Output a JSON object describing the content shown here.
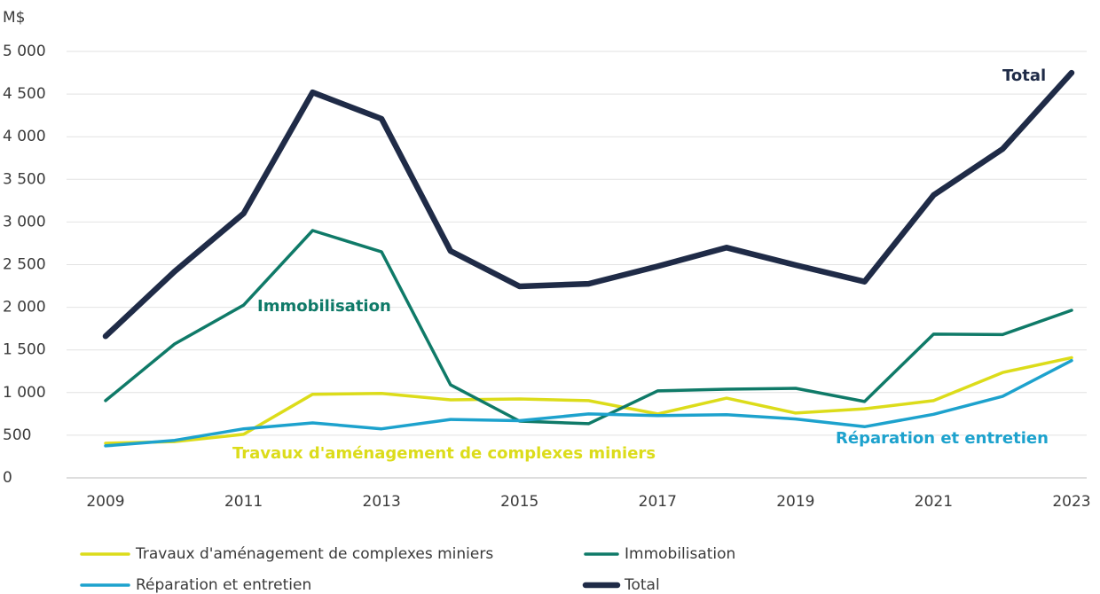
{
  "chart_data": {
    "type": "line",
    "y_unit": "M$",
    "x": [
      2009,
      2010,
      2011,
      2012,
      2013,
      2014,
      2015,
      2016,
      2017,
      2018,
      2019,
      2020,
      2021,
      2022,
      2023
    ],
    "xlim": [
      2009,
      2023
    ],
    "xticks": [
      2009,
      2011,
      2013,
      2015,
      2017,
      2019,
      2021,
      2023
    ],
    "ylim": [
      0,
      5000
    ],
    "yticks": [
      0,
      500,
      {
        "value": 1000,
        "label": "1 000"
      },
      {
        "value": 1500,
        "label": "1 500"
      },
      {
        "value": 2000,
        "label": "2 000"
      },
      {
        "value": 2500,
        "label": "2 500"
      },
      {
        "value": 3000,
        "label": "3 000"
      },
      {
        "value": 3500,
        "label": "3 500"
      },
      {
        "value": 4000,
        "label": "4 000"
      },
      {
        "value": 4500,
        "label": "4 500"
      },
      {
        "value": 5000,
        "label": "5 000"
      }
    ],
    "grid": true,
    "legend": "bottom",
    "series": [
      {
        "name": "Travaux d'aménagement de complexes miniers",
        "color": "#dcdc1a",
        "values": [
          405,
          425,
          510,
          980,
          990,
          915,
          925,
          905,
          750,
          935,
          760,
          810,
          905,
          1235,
          1410
        ]
      },
      {
        "name": "Immobilisation",
        "color": "#0f7a68",
        "values": [
          905,
          1570,
          2025,
          2900,
          2650,
          1090,
          665,
          635,
          1020,
          1040,
          1050,
          895,
          1685,
          1680,
          1965
        ]
      },
      {
        "name": "Réparation et entretien",
        "color": "#1da2cd",
        "values": [
          375,
          440,
          575,
          645,
          575,
          685,
          670,
          750,
          730,
          740,
          690,
          600,
          745,
          955,
          1375
        ]
      },
      {
        "name": "Total",
        "color": "#1f2b47",
        "values": [
          1660,
          2420,
          3100,
          4520,
          4210,
          2660,
          2245,
          2275,
          2480,
          2700,
          2495,
          2300,
          3315,
          3855,
          4750
        ]
      }
    ],
    "annotations": [
      {
        "text": "Travaux d'aménagement de complexes miniers",
        "color": "#dcdc1a"
      },
      {
        "text": "Immobilisation",
        "color": "#0f7a68"
      },
      {
        "text": "Réparation et entretien",
        "color": "#1da2cd"
      },
      {
        "text": "Total",
        "color": "#1f2b47"
      }
    ]
  }
}
